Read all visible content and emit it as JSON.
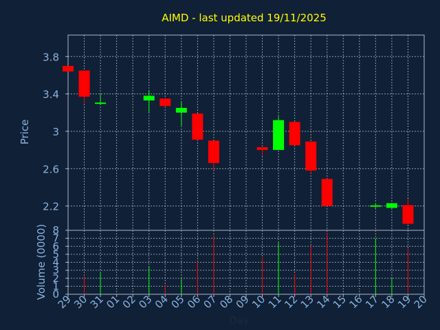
{
  "chart_data": {
    "type": "candlestick",
    "title": "AIMD - last updated 19/11/2025",
    "xlabel": "Day",
    "ylabel_price": "Price",
    "ylabel_volume": "Volume (0000)",
    "x_ticks": [
      "29",
      "30",
      "31",
      "01",
      "02",
      "03",
      "04",
      "05",
      "06",
      "07",
      "08",
      "09",
      "10",
      "11",
      "12",
      "13",
      "14",
      "15",
      "16",
      "17",
      "18",
      "19",
      "20"
    ],
    "price_ylim": [
      1.94,
      4.03
    ],
    "price_ticks": [
      "3.8",
      "3.4",
      "3",
      "2.6",
      "2.2"
    ],
    "price_tick_values": [
      3.8,
      3.4,
      3.0,
      2.6,
      2.2
    ],
    "volume_ylim": [
      0,
      8
    ],
    "volume_ticks": [
      "8",
      "7",
      "6",
      "5",
      "4",
      "3",
      "2",
      "1",
      "0"
    ],
    "volume_tick_values": [
      8,
      7,
      6,
      5,
      4,
      3,
      2,
      1,
      0
    ],
    "grid": true,
    "colors": {
      "background": "#102036",
      "plot_border": "#b0b8c8",
      "grid": "#c8d0dc",
      "title": "#ffff00",
      "axis_text": "#8ab4e0",
      "up": "#00ff00",
      "down": "#ff0000"
    },
    "candles": [
      {
        "day": "29",
        "open": 3.7,
        "high": 3.7,
        "low": 3.64,
        "close": 3.64,
        "volume": 0
      },
      {
        "day": "30",
        "open": 3.65,
        "high": 3.65,
        "low": 3.3,
        "close": 3.37,
        "volume": 2.4
      },
      {
        "day": "31",
        "open": 3.29,
        "high": 3.4,
        "low": 3.28,
        "close": 3.3,
        "volume": 2.7
      },
      {
        "day": "03",
        "open": 3.33,
        "high": 3.44,
        "low": 3.2,
        "close": 3.38,
        "volume": 3.5
      },
      {
        "day": "04",
        "open": 3.35,
        "high": 3.35,
        "low": 3.27,
        "close": 3.27,
        "volume": 1.2
      },
      {
        "day": "05",
        "open": 3.2,
        "high": 3.32,
        "low": 3.06,
        "close": 3.25,
        "volume": 1.9
      },
      {
        "day": "06",
        "open": 3.19,
        "high": 3.19,
        "low": 2.91,
        "close": 2.91,
        "volume": 4.1
      },
      {
        "day": "07",
        "open": 2.9,
        "high": 2.9,
        "low": 2.59,
        "close": 2.66,
        "volume": 7.4
      },
      {
        "day": "10",
        "open": 2.83,
        "high": 2.83,
        "low": 2.74,
        "close": 2.8,
        "volume": 4.6
      },
      {
        "day": "11",
        "open": 2.8,
        "high": 3.16,
        "low": 2.8,
        "close": 3.12,
        "volume": 6.5
      },
      {
        "day": "12",
        "open": 3.1,
        "high": 3.1,
        "low": 2.85,
        "close": 2.85,
        "volume": 2.5
      },
      {
        "day": "13",
        "open": 2.89,
        "high": 2.89,
        "low": 2.55,
        "close": 2.58,
        "volume": 6.1
      },
      {
        "day": "14",
        "open": 2.49,
        "high": 2.49,
        "low": 2.2,
        "close": 2.2,
        "volume": 7.7
      },
      {
        "day": "17",
        "open": 2.19,
        "high": 2.22,
        "low": 2.17,
        "close": 2.2,
        "volume": 7.0
      },
      {
        "day": "18",
        "open": 2.18,
        "high": 2.23,
        "low": 2.17,
        "close": 2.23,
        "volume": 2.0
      },
      {
        "day": "19",
        "open": 2.21,
        "high": 2.28,
        "low": 2.0,
        "close": 2.01,
        "volume": 5.7
      }
    ]
  }
}
